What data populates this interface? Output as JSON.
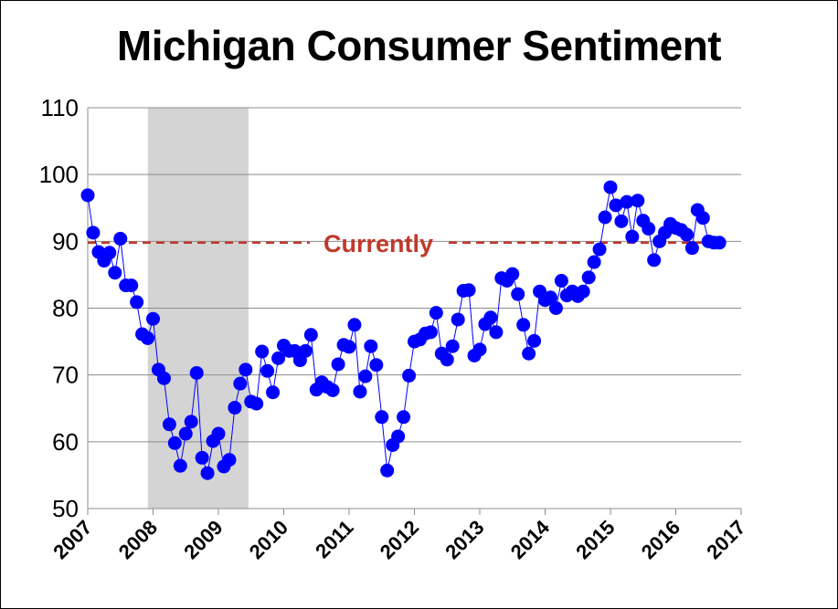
{
  "chart_data": {
    "type": "line",
    "title": "Michigan Consumer Sentiment",
    "xlabel": "",
    "ylabel": "",
    "xlim": [
      2007,
      2017
    ],
    "ylim": [
      50,
      110
    ],
    "y_ticks": [
      50,
      60,
      70,
      80,
      90,
      100,
      110
    ],
    "x_ticks": [
      "2007",
      "2008",
      "2009",
      "2010",
      "2011",
      "2012",
      "2013",
      "2014",
      "2015",
      "2016",
      "2017"
    ],
    "grid": "horizontal",
    "shaded_period": {
      "start": 2007.92,
      "end": 2009.46
    },
    "reference_line": {
      "value": 89.8,
      "label": "Currently",
      "color": "#c0392b"
    },
    "series": [
      {
        "color": "#0000ff",
        "x": [
          2007.0,
          2007.083,
          2007.167,
          2007.25,
          2007.333,
          2007.417,
          2007.5,
          2007.583,
          2007.667,
          2007.75,
          2007.833,
          2007.917,
          2008.0,
          2008.083,
          2008.167,
          2008.25,
          2008.333,
          2008.417,
          2008.5,
          2008.583,
          2008.667,
          2008.75,
          2008.833,
          2008.917,
          2009.0,
          2009.083,
          2009.167,
          2009.25,
          2009.333,
          2009.417,
          2009.5,
          2009.583,
          2009.667,
          2009.75,
          2009.833,
          2009.917,
          2010.0,
          2010.083,
          2010.167,
          2010.25,
          2010.333,
          2010.417,
          2010.5,
          2010.583,
          2010.667,
          2010.75,
          2010.833,
          2010.917,
          2011.0,
          2011.083,
          2011.167,
          2011.25,
          2011.333,
          2011.417,
          2011.5,
          2011.583,
          2011.667,
          2011.75,
          2011.833,
          2011.917,
          2012.0,
          2012.083,
          2012.167,
          2012.25,
          2012.333,
          2012.417,
          2012.5,
          2012.583,
          2012.667,
          2012.75,
          2012.833,
          2012.917,
          2013.0,
          2013.083,
          2013.167,
          2013.25,
          2013.333,
          2013.417,
          2013.5,
          2013.583,
          2013.667,
          2013.75,
          2013.833,
          2013.917,
          2014.0,
          2014.083,
          2014.167,
          2014.25,
          2014.333,
          2014.417,
          2014.5,
          2014.583,
          2014.667,
          2014.75,
          2014.833,
          2014.917,
          2015.0,
          2015.083,
          2015.167,
          2015.25,
          2015.333,
          2015.417,
          2015.5,
          2015.583,
          2015.667,
          2015.75,
          2015.833,
          2015.917,
          2016.0,
          2016.083,
          2016.167,
          2016.25,
          2016.333,
          2016.417,
          2016.5,
          2016.583,
          2016.667
        ],
        "y": [
          96.9,
          91.3,
          88.4,
          87.1,
          88.3,
          85.3,
          90.4,
          83.4,
          83.4,
          80.9,
          76.1,
          75.5,
          78.4,
          70.8,
          69.5,
          62.6,
          59.8,
          56.4,
          61.2,
          63.0,
          70.3,
          57.6,
          55.3,
          60.1,
          61.2,
          56.3,
          57.3,
          65.1,
          68.7,
          70.8,
          66.0,
          65.7,
          73.5,
          70.6,
          67.4,
          72.5,
          74.4,
          73.6,
          73.6,
          72.2,
          73.6,
          76.0,
          67.8,
          68.9,
          68.2,
          67.7,
          71.6,
          74.5,
          74.2,
          77.5,
          67.5,
          69.8,
          74.3,
          71.5,
          63.7,
          55.7,
          59.5,
          60.8,
          63.7,
          69.9,
          75.0,
          75.3,
          76.2,
          76.4,
          79.3,
          73.2,
          72.3,
          74.3,
          78.3,
          82.6,
          82.7,
          72.9,
          73.8,
          77.6,
          78.6,
          76.4,
          84.5,
          84.1,
          85.1,
          82.1,
          77.5,
          73.2,
          75.1,
          82.5,
          81.2,
          81.6,
          80.0,
          84.1,
          81.9,
          82.5,
          81.8,
          82.5,
          84.6,
          86.9,
          88.8,
          93.6,
          98.1,
          95.4,
          93.0,
          95.9,
          90.7,
          96.1,
          93.1,
          91.9,
          87.2,
          90.0,
          91.3,
          92.6,
          92.0,
          91.7,
          91.0,
          89.0,
          94.7,
          93.5,
          90.0,
          89.8,
          89.8
        ]
      }
    ]
  }
}
